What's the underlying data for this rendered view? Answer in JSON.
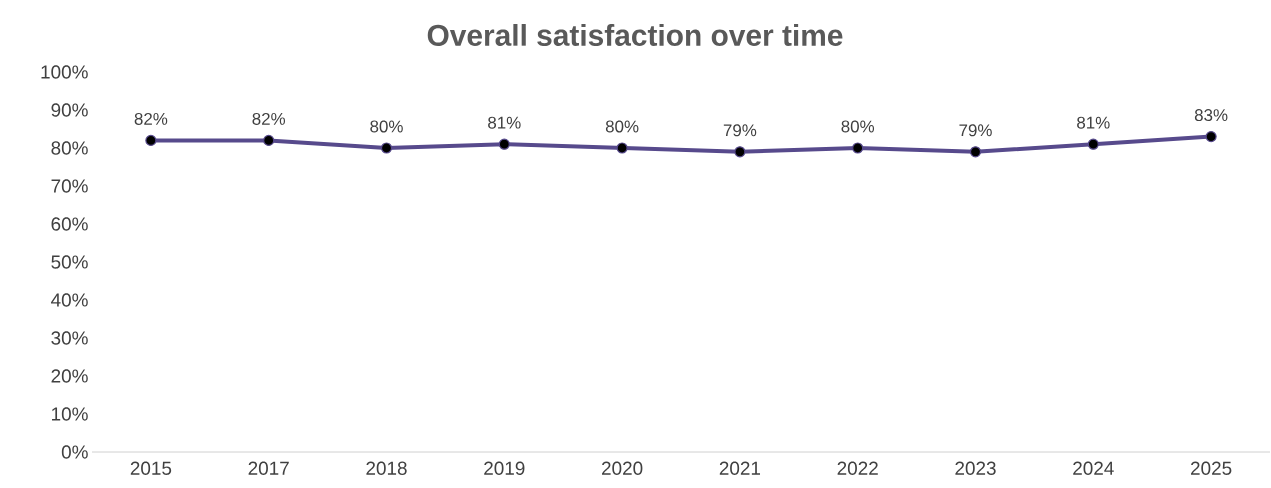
{
  "chart_data": {
    "type": "line",
    "title": "Overall satisfaction over time",
    "categories": [
      "2015",
      "2017",
      "2018",
      "2019",
      "2020",
      "2021",
      "2022",
      "2023",
      "2024",
      "2025"
    ],
    "values": [
      82,
      82,
      80,
      81,
      80,
      79,
      80,
      79,
      81,
      83
    ],
    "value_labels": [
      "82%",
      "82%",
      "80%",
      "81%",
      "80%",
      "79%",
      "80%",
      "79%",
      "81%",
      "83%"
    ],
    "color": "#574a8c",
    "marker": "circle",
    "line_style": "solid",
    "ylim": [
      0,
      100
    ],
    "yticks": [
      {
        "value": 0,
        "label": "0%"
      },
      {
        "value": 10,
        "label": "10%"
      },
      {
        "value": 20,
        "label": "20%"
      },
      {
        "value": 30,
        "label": "30%"
      },
      {
        "value": 40,
        "label": "40%"
      },
      {
        "value": 50,
        "label": "50%"
      },
      {
        "value": 60,
        "label": "60%"
      },
      {
        "value": 70,
        "label": "70%"
      },
      {
        "value": 80,
        "label": "80%"
      },
      {
        "value": 90,
        "label": "90%"
      },
      {
        "value": 100,
        "label": "100%"
      }
    ]
  }
}
